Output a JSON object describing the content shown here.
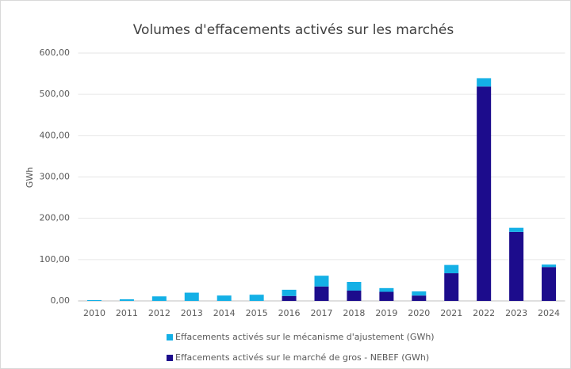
{
  "chart_data": {
    "type": "stacked_bar",
    "title": "Volumes d'effacements activés sur les marchés",
    "y_label": "GWh",
    "categories": [
      "2010",
      "2011",
      "2012",
      "2013",
      "2014",
      "2015",
      "2016",
      "2017",
      "2018",
      "2019",
      "2020",
      "2021",
      "2022",
      "2023",
      "2024"
    ],
    "series": [
      {
        "name": "Effacements activés sur le marché de gros - NEBEF (GWh)",
        "color": "#1c0c8c",
        "values": [
          0,
          0,
          0,
          0,
          0,
          0,
          12,
          35,
          25,
          22,
          13,
          67,
          519,
          167,
          82
        ]
      },
      {
        "name": "Effacements activés sur le mécanisme d'ajustement (GWh)",
        "color": "#14b0e6",
        "values": [
          2,
          4,
          11,
          20,
          13,
          15,
          15,
          26,
          21,
          9,
          10,
          20,
          20,
          10,
          6
        ]
      }
    ],
    "ylim": [
      0,
      600
    ],
    "yticks": [
      {
        "value": 0,
        "label": "0,00"
      },
      {
        "value": 100,
        "label": "100,00"
      },
      {
        "value": 200,
        "label": "200,00"
      },
      {
        "value": 300,
        "label": "300,00"
      },
      {
        "value": 400,
        "label": "400,00"
      },
      {
        "value": 500,
        "label": "500,00"
      },
      {
        "value": 600,
        "label": "600,00"
      }
    ],
    "grid": true
  }
}
